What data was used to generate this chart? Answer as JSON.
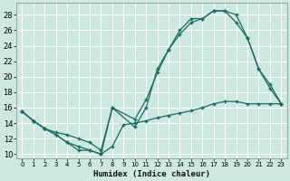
{
  "xlabel": "Humidex (Indice chaleur)",
  "bg_color": "#cce8e0",
  "grid_color": "#ffffff",
  "line_color": "#1a6b60",
  "xlim": [
    -0.5,
    23.5
  ],
  "ylim": [
    9.5,
    29.5
  ],
  "xticks": [
    0,
    1,
    2,
    3,
    4,
    5,
    6,
    7,
    8,
    9,
    10,
    11,
    12,
    13,
    14,
    15,
    16,
    17,
    18,
    19,
    20,
    21,
    22,
    23
  ],
  "yticks": [
    10,
    12,
    14,
    16,
    18,
    20,
    22,
    24,
    26,
    28
  ],
  "line1_x": [
    0,
    1,
    2,
    3,
    4,
    5,
    6,
    7,
    8,
    9,
    10,
    11,
    12,
    13,
    14,
    15,
    16,
    17,
    18,
    19,
    20,
    21,
    22,
    23
  ],
  "line1_y": [
    15.5,
    14.3,
    13.3,
    12.5,
    11.5,
    11.0,
    10.5,
    10.0,
    11.0,
    13.8,
    14.0,
    14.3,
    14.7,
    15.0,
    15.3,
    15.6,
    16.0,
    16.5,
    16.8,
    16.8,
    16.5,
    16.5,
    16.5,
    16.5
  ],
  "line2_x": [
    0,
    1,
    2,
    3,
    4,
    5,
    6,
    7,
    8,
    10,
    11,
    12,
    13,
    14,
    15,
    16,
    17,
    18,
    19,
    20,
    21,
    22,
    23
  ],
  "line2_y": [
    15.5,
    14.3,
    13.3,
    12.8,
    12.5,
    12.0,
    11.5,
    10.5,
    16.0,
    14.5,
    17.0,
    20.5,
    23.5,
    25.5,
    27.0,
    27.5,
    28.5,
    28.5,
    27.0,
    25.0,
    21.0,
    19.0,
    16.5
  ],
  "line3_x": [
    0,
    1,
    2,
    3,
    4,
    5,
    6,
    7,
    8,
    10,
    11,
    12,
    13,
    14,
    15,
    16,
    17,
    18,
    19,
    20,
    21,
    22,
    23
  ],
  "line3_y": [
    15.5,
    14.3,
    13.3,
    12.5,
    11.5,
    10.5,
    10.5,
    10.0,
    16.0,
    13.5,
    16.0,
    21.0,
    23.5,
    26.0,
    27.5,
    27.5,
    28.5,
    28.5,
    28.0,
    25.0,
    21.0,
    18.5,
    16.5
  ]
}
